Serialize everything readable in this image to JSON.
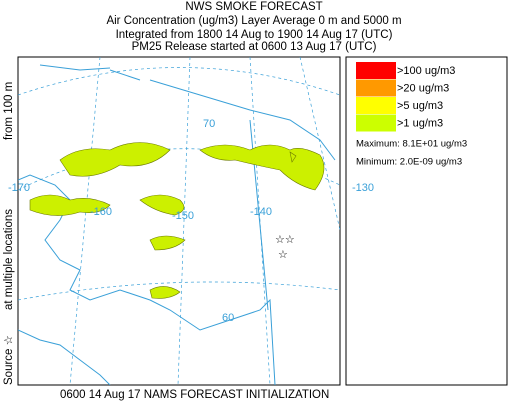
{
  "header": {
    "title": "NWS SMOKE FORECAST",
    "lines": [
      "Air Concentration (ug/m3) Layer Average    0 m and  5000 m",
      "Integrated from 1800 14 Aug to 1900 14 Aug 17 (UTC)",
      "PM25 Release started at 0600 13 Aug 17 (UTC)"
    ]
  },
  "side_label": [
    "Source ☆",
    "at multiple locations",
    "from   100 m"
  ],
  "legend": [
    {
      "label": ">100 ug/m3",
      "color": "#ff0000"
    },
    {
      "label": ">20 ug/m3",
      "color": "#ff9900"
    },
    {
      "label": ">5 ug/m3",
      "color": "#ffff00"
    },
    {
      "label": ">1 ug/m3",
      "color": "#ccff00"
    }
  ],
  "stats": [
    "Maximum: 8.1E+01 ug/m3",
    "Minimum: 2.0E-09 ug/m3"
  ],
  "map_labels": [
    "70",
    "-170",
    "-160",
    "-150",
    "-140",
    "-130",
    "60"
  ],
  "footer": "0600 14 Aug 17 NAMS FORECAST INITIALIZATION"
}
